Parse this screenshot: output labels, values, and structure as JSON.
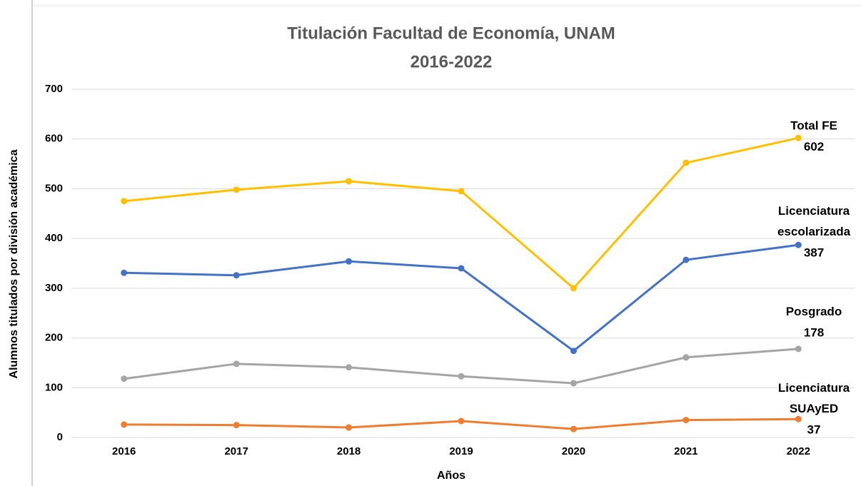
{
  "chart_data": {
    "type": "line",
    "title": "Titulación Facultad de Economía, UNAM",
    "subtitle": "2016-2022",
    "x_label": "Años",
    "y_label": "Alumnos titulados por división académica",
    "categories": [
      "2016",
      "2017",
      "2018",
      "2019",
      "2020",
      "2021",
      "2022"
    ],
    "series": [
      {
        "name": "Total FE",
        "color": "#ffc000",
        "values": [
          475,
          498,
          515,
          495,
          300,
          552,
          602
        ]
      },
      {
        "name": "Licenciatura escolarizada",
        "color": "#4472c4",
        "values": [
          331,
          326,
          354,
          340,
          174,
          357,
          387
        ]
      },
      {
        "name": "Posgrado",
        "color": "#a5a5a5",
        "values": [
          118,
          148,
          141,
          123,
          109,
          161,
          178
        ]
      },
      {
        "name": "Licenciatura SUAyED",
        "color": "#ed7d31",
        "values": [
          26,
          25,
          20,
          33,
          17,
          35,
          37
        ]
      }
    ],
    "ylim": [
      0,
      700
    ],
    "yticks": [
      0,
      100,
      200,
      300,
      400,
      500,
      600,
      700
    ],
    "grid": true
  }
}
